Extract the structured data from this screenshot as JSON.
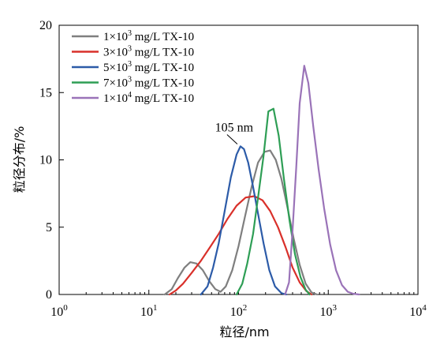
{
  "chart_data": {
    "type": "line",
    "xlabel": "粒径/nm",
    "ylabel": "粒径分布/%",
    "x_scale": "log",
    "xlim": [
      1,
      10000
    ],
    "ylim": [
      0,
      20
    ],
    "x_ticks": [
      {
        "value": 1,
        "base": "10",
        "exp": "0"
      },
      {
        "value": 10,
        "base": "10",
        "exp": "1"
      },
      {
        "value": 100,
        "base": "10",
        "exp": "2"
      },
      {
        "value": 1000,
        "base": "10",
        "exp": "3"
      },
      {
        "value": 10000,
        "base": "10",
        "exp": "4"
      }
    ],
    "y_ticks": [
      0,
      5,
      10,
      15,
      20
    ],
    "legend_position": "top-left",
    "annotation": {
      "text": "105 nm",
      "x": 105,
      "y": 11.0
    },
    "series": [
      {
        "name_parts": [
          "1×10",
          "3",
          " mg/L TX-10"
        ],
        "color": "#7f7f7f",
        "points": [
          [
            15,
            0
          ],
          [
            18,
            0.4
          ],
          [
            21,
            1.2
          ],
          [
            25,
            2.0
          ],
          [
            29,
            2.4
          ],
          [
            34,
            2.3
          ],
          [
            40,
            1.8
          ],
          [
            47,
            1.0
          ],
          [
            55,
            0.4
          ],
          [
            63,
            0.2
          ],
          [
            72,
            0.6
          ],
          [
            85,
            1.8
          ],
          [
            100,
            3.6
          ],
          [
            118,
            5.8
          ],
          [
            140,
            8.0
          ],
          [
            165,
            9.8
          ],
          [
            195,
            10.6
          ],
          [
            225,
            10.7
          ],
          [
            260,
            10.0
          ],
          [
            300,
            8.6
          ],
          [
            350,
            6.5
          ],
          [
            410,
            4.2
          ],
          [
            480,
            2.2
          ],
          [
            560,
            0.8
          ],
          [
            650,
            0.15
          ],
          [
            750,
            0
          ]
        ]
      },
      {
        "name_parts": [
          "3×10",
          "3",
          " mg/L TX-10"
        ],
        "color": "#d9302a",
        "points": [
          [
            17,
            0
          ],
          [
            20,
            0.3
          ],
          [
            24,
            0.8
          ],
          [
            30,
            1.6
          ],
          [
            38,
            2.5
          ],
          [
            48,
            3.5
          ],
          [
            60,
            4.5
          ],
          [
            75,
            5.6
          ],
          [
            95,
            6.6
          ],
          [
            120,
            7.2
          ],
          [
            150,
            7.3
          ],
          [
            185,
            7.0
          ],
          [
            225,
            6.2
          ],
          [
            275,
            5.0
          ],
          [
            335,
            3.5
          ],
          [
            400,
            2.0
          ],
          [
            480,
            0.9
          ],
          [
            570,
            0.25
          ],
          [
            650,
            0
          ]
        ]
      },
      {
        "name_parts": [
          "5×10",
          "3",
          " mg/L TX-10"
        ],
        "color": "#2c5ba8",
        "points": [
          [
            38,
            0
          ],
          [
            45,
            0.6
          ],
          [
            52,
            2.0
          ],
          [
            60,
            3.8
          ],
          [
            70,
            6.2
          ],
          [
            82,
            8.7
          ],
          [
            95,
            10.4
          ],
          [
            105,
            11.0
          ],
          [
            115,
            10.8
          ],
          [
            128,
            9.8
          ],
          [
            145,
            8.0
          ],
          [
            165,
            6.0
          ],
          [
            190,
            3.8
          ],
          [
            220,
            1.8
          ],
          [
            255,
            0.6
          ],
          [
            300,
            0.1
          ],
          [
            340,
            0
          ]
        ]
      },
      {
        "name_parts": [
          "7×10",
          "3",
          " mg/L TX-10"
        ],
        "color": "#2e9e55",
        "points": [
          [
            95,
            0
          ],
          [
            110,
            0.8
          ],
          [
            125,
            2.3
          ],
          [
            145,
            4.5
          ],
          [
            165,
            7.2
          ],
          [
            190,
            10.3
          ],
          [
            215,
            13.6
          ],
          [
            245,
            13.8
          ],
          [
            280,
            11.8
          ],
          [
            320,
            8.6
          ],
          [
            370,
            5.5
          ],
          [
            425,
            3.0
          ],
          [
            490,
            1.3
          ],
          [
            560,
            0.35
          ],
          [
            620,
            0
          ]
        ]
      },
      {
        "name_parts": [
          "1×10",
          "4",
          " mg/L TX-10"
        ],
        "color": "#9a73b8",
        "points": [
          [
            330,
            0
          ],
          [
            365,
            0.9
          ],
          [
            400,
            4.8
          ],
          [
            440,
            9.5
          ],
          [
            480,
            14.2
          ],
          [
            540,
            17.0
          ],
          [
            600,
            15.7
          ],
          [
            680,
            12.5
          ],
          [
            780,
            9.3
          ],
          [
            900,
            6.4
          ],
          [
            1050,
            3.7
          ],
          [
            1220,
            1.8
          ],
          [
            1420,
            0.7
          ],
          [
            1650,
            0.2
          ],
          [
            1900,
            0.05
          ],
          [
            2200,
            0
          ]
        ]
      }
    ]
  }
}
